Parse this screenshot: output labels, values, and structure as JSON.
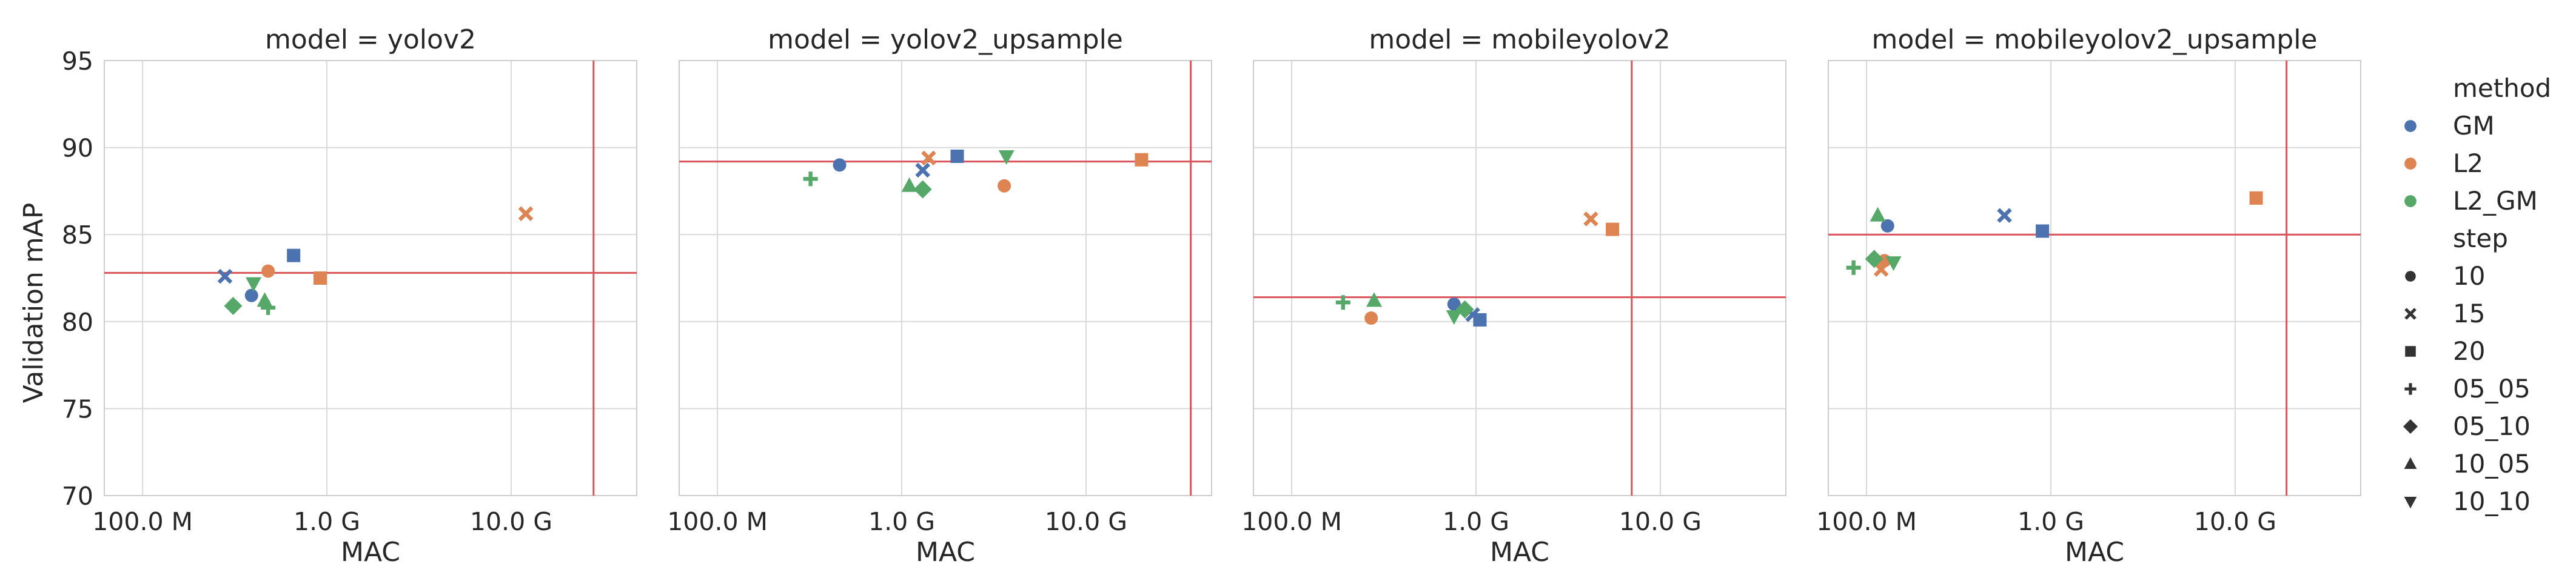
{
  "figure": {
    "ylabel": "Validation mAP",
    "xlabel": "MAC",
    "colors": {
      "GM": "#4c72b0",
      "L2": "#dd8452",
      "L2_GM": "#55a868",
      "refline": "#d9545a",
      "grid": "#d9d9d9"
    }
  },
  "legend": {
    "method_title": "method",
    "methods": [
      "GM",
      "L2",
      "L2_GM"
    ],
    "step_title": "step",
    "steps": [
      {
        "label": "10",
        "marker": "circle"
      },
      {
        "label": "15",
        "marker": "x"
      },
      {
        "label": "20",
        "marker": "square"
      },
      {
        "label": "05_05",
        "marker": "plus"
      },
      {
        "label": "05_10",
        "marker": "diamond"
      },
      {
        "label": "10_05",
        "marker": "triangle-up"
      },
      {
        "label": "10_10",
        "marker": "triangle-down"
      }
    ]
  },
  "chart_data": [
    {
      "type": "scatter",
      "title": "model = yolov2",
      "xscale": "log",
      "xlim": [
        62000000.0,
        48000000000.0
      ],
      "ylim": [
        70,
        95
      ],
      "xticks": [
        {
          "value": 100000000.0,
          "label": "100.0 M"
        },
        {
          "value": 1000000000.0,
          "label": "1.0 G"
        },
        {
          "value": 10000000000.0,
          "label": "10.0 G"
        }
      ],
      "yticks": [
        70,
        75,
        80,
        85,
        90,
        95
      ],
      "hline": 82.8,
      "vline": 28000000000.0,
      "points": [
        {
          "method": "GM",
          "step": "10",
          "x": 390000000.0,
          "y": 81.5
        },
        {
          "method": "GM",
          "step": "15",
          "x": 280000000.0,
          "y": 82.6
        },
        {
          "method": "GM",
          "step": "20",
          "x": 660000000.0,
          "y": 83.8
        },
        {
          "method": "L2",
          "step": "10",
          "x": 480000000.0,
          "y": 82.9
        },
        {
          "method": "L2",
          "step": "15",
          "x": 12000000000.0,
          "y": 86.2
        },
        {
          "method": "L2",
          "step": "20",
          "x": 920000000.0,
          "y": 82.5
        },
        {
          "method": "L2_GM",
          "step": "05_05",
          "x": 480000000.0,
          "y": 80.8
        },
        {
          "method": "L2_GM",
          "step": "05_10",
          "x": 310000000.0,
          "y": 80.9
        },
        {
          "method": "L2_GM",
          "step": "10_05",
          "x": 460000000.0,
          "y": 81.2
        },
        {
          "method": "L2_GM",
          "step": "10_10",
          "x": 400000000.0,
          "y": 82.2
        }
      ]
    },
    {
      "type": "scatter",
      "title": "model = yolov2_upsample",
      "xscale": "log",
      "xlim": [
        62000000.0,
        48000000000.0
      ],
      "ylim": [
        70,
        95
      ],
      "xticks": [
        {
          "value": 100000000.0,
          "label": "100.0 M"
        },
        {
          "value": 1000000000.0,
          "label": "1.0 G"
        },
        {
          "value": 10000000000.0,
          "label": "10.0 G"
        }
      ],
      "yticks": [
        70,
        75,
        80,
        85,
        90,
        95
      ],
      "hline": 89.2,
      "vline": 37000000000.0,
      "points": [
        {
          "method": "GM",
          "step": "10",
          "x": 460000000.0,
          "y": 89.0
        },
        {
          "method": "GM",
          "step": "15",
          "x": 1300000000.0,
          "y": 88.7
        },
        {
          "method": "GM",
          "step": "20",
          "x": 2000000000.0,
          "y": 89.5
        },
        {
          "method": "L2",
          "step": "10",
          "x": 3600000000.0,
          "y": 87.8
        },
        {
          "method": "L2",
          "step": "15",
          "x": 1400000000.0,
          "y": 89.4
        },
        {
          "method": "L2",
          "step": "20",
          "x": 20000000000.0,
          "y": 89.3
        },
        {
          "method": "L2_GM",
          "step": "05_05",
          "x": 320000000.0,
          "y": 88.2
        },
        {
          "method": "L2_GM",
          "step": "05_10",
          "x": 1300000000.0,
          "y": 87.6
        },
        {
          "method": "L2_GM",
          "step": "10_05",
          "x": 1100000000.0,
          "y": 87.8
        },
        {
          "method": "L2_GM",
          "step": "10_10",
          "x": 3700000000.0,
          "y": 89.5
        }
      ]
    },
    {
      "type": "scatter",
      "title": "model = mobileyolov2",
      "xscale": "log",
      "xlim": [
        62000000.0,
        48000000000.0
      ],
      "ylim": [
        70,
        95
      ],
      "xticks": [
        {
          "value": 100000000.0,
          "label": "100.0 M"
        },
        {
          "value": 1000000000.0,
          "label": "1.0 G"
        },
        {
          "value": 10000000000.0,
          "label": "10.0 G"
        }
      ],
      "yticks": [
        70,
        75,
        80,
        85,
        90,
        95
      ],
      "hline": 81.4,
      "vline": 7000000000.0,
      "points": [
        {
          "method": "GM",
          "step": "10",
          "x": 760000000.0,
          "y": 81.0
        },
        {
          "method": "GM",
          "step": "15",
          "x": 960000000.0,
          "y": 80.4
        },
        {
          "method": "GM",
          "step": "20",
          "x": 1050000000.0,
          "y": 80.1
        },
        {
          "method": "L2",
          "step": "10",
          "x": 270000000.0,
          "y": 80.2
        },
        {
          "method": "L2",
          "step": "15",
          "x": 4200000000.0,
          "y": 85.9
        },
        {
          "method": "L2",
          "step": "20",
          "x": 5500000000.0,
          "y": 85.3
        },
        {
          "method": "L2_GM",
          "step": "05_05",
          "x": 190000000.0,
          "y": 81.1
        },
        {
          "method": "L2_GM",
          "step": "05_10",
          "x": 870000000.0,
          "y": 80.7
        },
        {
          "method": "L2_GM",
          "step": "10_05",
          "x": 280000000.0,
          "y": 81.2
        },
        {
          "method": "L2_GM",
          "step": "10_10",
          "x": 760000000.0,
          "y": 80.3
        }
      ]
    },
    {
      "type": "scatter",
      "title": "model = mobileyolov2_upsample",
      "xscale": "log",
      "xlim": [
        62000000.0,
        48000000000.0
      ],
      "ylim": [
        70,
        95
      ],
      "xticks": [
        {
          "value": 100000000.0,
          "label": "100.0 M"
        },
        {
          "value": 1000000000.0,
          "label": "1.0 G"
        },
        {
          "value": 10000000000.0,
          "label": "10.0 G"
        }
      ],
      "yticks": [
        70,
        75,
        80,
        85,
        90,
        95
      ],
      "hline": 85.0,
      "vline": 19000000000.0,
      "points": [
        {
          "method": "GM",
          "step": "10",
          "x": 130000000.0,
          "y": 85.5
        },
        {
          "method": "GM",
          "step": "15",
          "x": 560000000.0,
          "y": 86.1
        },
        {
          "method": "GM",
          "step": "20",
          "x": 900000000.0,
          "y": 85.2
        },
        {
          "method": "L2",
          "step": "10",
          "x": 125000000.0,
          "y": 83.5
        },
        {
          "method": "L2",
          "step": "15",
          "x": 120000000.0,
          "y": 83.0
        },
        {
          "method": "L2",
          "step": "20",
          "x": 13000000000.0,
          "y": 87.1
        },
        {
          "method": "L2_GM",
          "step": "05_05",
          "x": 85000000.0,
          "y": 83.1
        },
        {
          "method": "L2_GM",
          "step": "05_10",
          "x": 110000000.0,
          "y": 83.6
        },
        {
          "method": "L2_GM",
          "step": "10_05",
          "x": 115000000.0,
          "y": 86.1
        },
        {
          "method": "L2_GM",
          "step": "10_10",
          "x": 140000000.0,
          "y": 83.4
        }
      ]
    }
  ]
}
